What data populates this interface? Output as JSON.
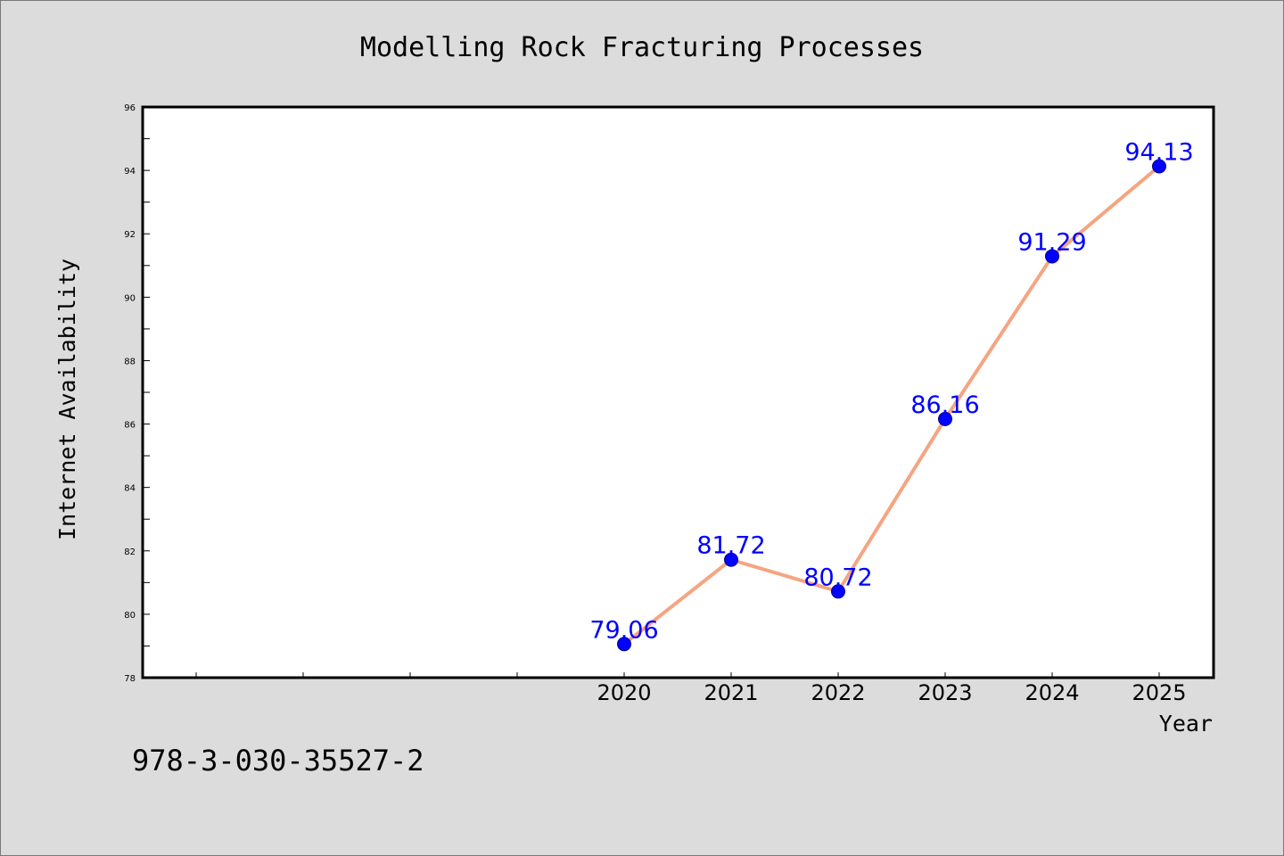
{
  "chart_data": {
    "type": "line",
    "title": "Modelling Rock Fracturing Processes",
    "xlabel": "Year",
    "ylabel": "Internet Availability",
    "x": [
      "2020",
      "2021",
      "2022",
      "2023",
      "2024",
      "2025"
    ],
    "series": [
      {
        "values": [
          79.06,
          81.72,
          80.72,
          86.16,
          91.29,
          94.13
        ],
        "labels": [
          "79.06",
          "81.72",
          "80.72",
          "86.16",
          "91.29",
          "94.13"
        ]
      }
    ],
    "ylim": [
      78,
      96
    ],
    "yticks": [
      "78",
      "80",
      "82",
      "84",
      "86",
      "88",
      "90",
      "92",
      "94",
      "96"
    ],
    "grid": false,
    "legend": "none",
    "colors": {
      "line": "#f4a582",
      "marker": "#0000ff",
      "marker_edge": "#00008b",
      "data_label": "#0000ff",
      "background": "#dcdcdc",
      "plot_background": "#ffffff"
    }
  },
  "footer": {
    "isbn": "978-3-030-35527-2"
  }
}
